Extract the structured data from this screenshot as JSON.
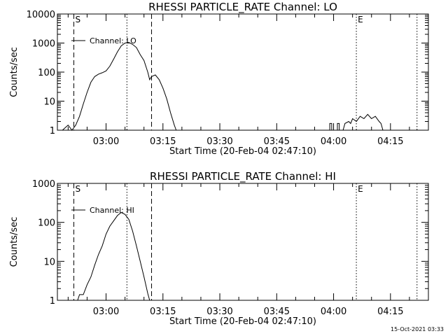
{
  "footer_timestamp": "15-Oct-2021 03:33",
  "chart_data": [
    {
      "type": "line",
      "title": "RHESSI PARTICLE_RATE Channel: LO",
      "xlabel": "Start Time (20-Feb-04 02:47:10)",
      "ylabel": "Counts/sec",
      "y_scale": "log",
      "ylim": [
        1,
        10000
      ],
      "xlim": [
        "02:47:10",
        "04:25:00"
      ],
      "y_ticks": [
        "1",
        "10",
        "100",
        "1000",
        "10000"
      ],
      "x_ticks": [
        "03:00",
        "03:15",
        "03:30",
        "03:45",
        "04:00",
        "04:15"
      ],
      "legend": {
        "label": "Channel: LO",
        "placement": "top-left"
      },
      "markers": [
        {
          "label": "S",
          "time": "02:51:30",
          "style": "dashed"
        },
        {
          "label": "",
          "time": "03:05:30",
          "style": "dotted"
        },
        {
          "label": "",
          "time": "03:12:00",
          "style": "dashed"
        },
        {
          "label": "E",
          "time": "04:06:00",
          "style": "dotted"
        },
        {
          "label": "",
          "time": "04:22:00",
          "style": "dotted"
        }
      ],
      "series": [
        {
          "name": "Channel: LO",
          "segments": [
            [
              [
                "02:48:30",
                1
              ],
              [
                "02:50:00",
                1.5
              ],
              [
                "02:51:00",
                1
              ],
              [
                "02:52:00",
                1.5
              ],
              [
                "02:53:00",
                3
              ],
              [
                "02:54:00",
                8
              ],
              [
                "02:55:00",
                20
              ],
              [
                "02:56:00",
                45
              ],
              [
                "02:57:00",
                70
              ],
              [
                "02:58:00",
                85
              ],
              [
                "02:59:00",
                95
              ],
              [
                "03:00:00",
                110
              ],
              [
                "03:01:00",
                160
              ],
              [
                "03:02:00",
                280
              ],
              [
                "03:03:00",
                500
              ],
              [
                "03:04:00",
                800
              ],
              [
                "03:05:00",
                1000
              ],
              [
                "03:06:00",
                1050
              ],
              [
                "03:07:00",
                900
              ],
              [
                "03:08:00",
                700
              ],
              [
                "03:09:00",
                400
              ],
              [
                "03:10:00",
                250
              ],
              [
                "03:11:00",
                100
              ],
              [
                "03:11:30",
                55
              ],
              [
                "03:12:00",
                70
              ],
              [
                "03:13:00",
                80
              ],
              [
                "03:14:00",
                55
              ],
              [
                "03:15:00",
                28
              ],
              [
                "03:16:00",
                12
              ],
              [
                "03:17:00",
                4
              ],
              [
                "03:18:00",
                1.5
              ],
              [
                "03:18:30",
                1
              ]
            ],
            [
              [
                "03:59:00",
                1
              ],
              [
                "03:59:00",
                1.7
              ],
              [
                "03:59:30",
                1.7
              ],
              [
                "03:59:30",
                1
              ],
              [
                "04:01:00",
                1
              ],
              [
                "04:01:00",
                1.7
              ],
              [
                "04:01:30",
                1.7
              ],
              [
                "04:01:30",
                1
              ],
              [
                "04:02:30",
                1
              ],
              [
                "04:03:00",
                1.7
              ],
              [
                "04:04:00",
                2
              ],
              [
                "04:04:30",
                1.7
              ],
              [
                "04:05:00",
                2.5
              ],
              [
                "04:06:00",
                2
              ],
              [
                "04:07:00",
                3
              ],
              [
                "04:08:00",
                2.5
              ],
              [
                "04:09:00",
                3.5
              ],
              [
                "04:10:00",
                2.5
              ],
              [
                "04:11:00",
                3
              ],
              [
                "04:12:00",
                2
              ],
              [
                "04:12:30",
                1.7
              ],
              [
                "04:13:00",
                1
              ]
            ]
          ]
        }
      ]
    },
    {
      "type": "line",
      "title": "RHESSI PARTICLE_RATE Channel: HI",
      "xlabel": "Start Time (20-Feb-04 02:47:10)",
      "ylabel": "Counts/sec",
      "y_scale": "log",
      "ylim": [
        1,
        1000
      ],
      "xlim": [
        "02:47:10",
        "04:25:00"
      ],
      "y_ticks": [
        "1",
        "10",
        "100",
        "1000"
      ],
      "x_ticks": [
        "03:00",
        "03:15",
        "03:30",
        "03:45",
        "04:00",
        "04:15"
      ],
      "legend": {
        "label": "Channel: HI",
        "placement": "top-left"
      },
      "markers": [
        {
          "label": "S",
          "time": "02:51:30",
          "style": "dashed"
        },
        {
          "label": "",
          "time": "03:05:30",
          "style": "dotted"
        },
        {
          "label": "",
          "time": "03:12:00",
          "style": "dashed"
        },
        {
          "label": "E",
          "time": "04:06:00",
          "style": "dotted"
        },
        {
          "label": "",
          "time": "04:22:00",
          "style": "dotted"
        }
      ],
      "series": [
        {
          "name": "Channel: HI",
          "segments": [
            [
              [
                "02:52:30",
                1
              ],
              [
                "02:53:00",
                1.4
              ],
              [
                "02:53:30",
                1.4
              ],
              [
                "02:54:00",
                1.4
              ],
              [
                "02:55:00",
                2.5
              ],
              [
                "02:56:00",
                4
              ],
              [
                "02:57:00",
                8
              ],
              [
                "02:58:00",
                15
              ],
              [
                "02:59:00",
                25
              ],
              [
                "03:00:00",
                50
              ],
              [
                "03:01:00",
                80
              ],
              [
                "03:02:00",
                110
              ],
              [
                "03:03:00",
                150
              ],
              [
                "03:04:00",
                180
              ],
              [
                "03:05:00",
                160
              ],
              [
                "03:06:00",
                120
              ],
              [
                "03:07:00",
                60
              ],
              [
                "03:08:00",
                25
              ],
              [
                "03:09:00",
                10
              ],
              [
                "03:10:00",
                4
              ],
              [
                "03:11:00",
                1.5
              ],
              [
                "03:11:30",
                1
              ]
            ]
          ]
        }
      ]
    }
  ]
}
